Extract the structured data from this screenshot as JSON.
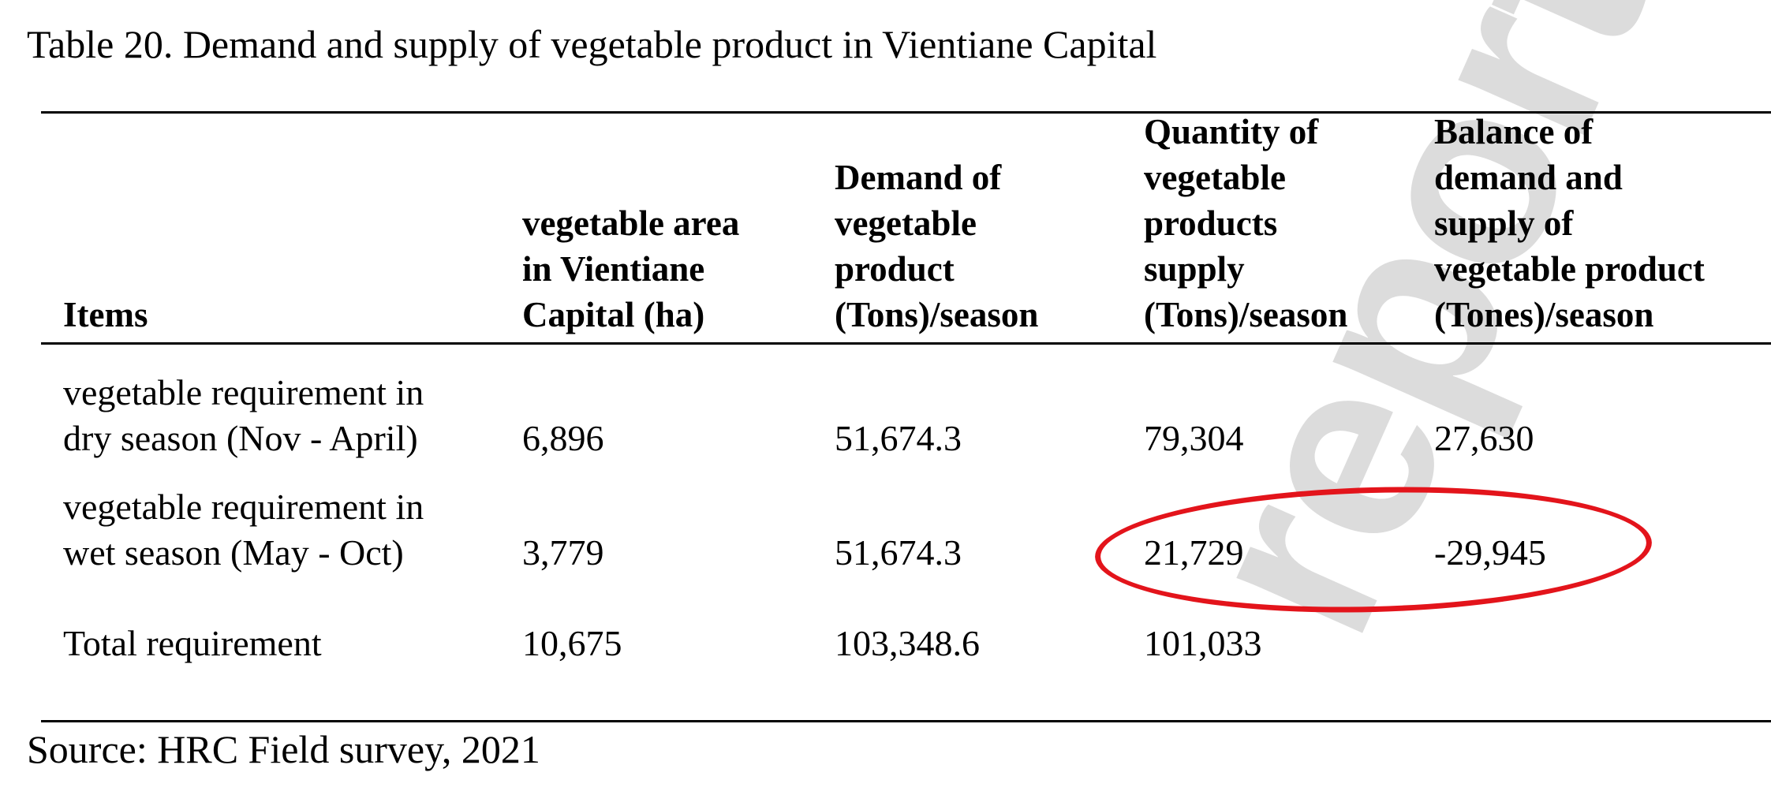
{
  "caption": "Table 20. Demand and supply of vegetable product in Vientiane Capital",
  "watermark": "report",
  "table": {
    "headers": {
      "items": [
        "Items"
      ],
      "area": [
        "vegetable area",
        "in Vientiane",
        "Capital (ha)"
      ],
      "demand": [
        "Demand of",
        "vegetable",
        "product",
        "(Tons)/season"
      ],
      "supply": [
        "Quantity of",
        "vegetable",
        "products",
        "supply",
        "(Tons)/season"
      ],
      "balance": [
        "Balance of",
        "demand and",
        "supply of",
        "vegetable product",
        "(Tones)/season"
      ]
    },
    "rows": [
      {
        "item": [
          "vegetable requirement in",
          "dry season (Nov - April)"
        ],
        "area": "6,896",
        "demand": "51,674.3",
        "supply": "79,304",
        "balance": "27,630"
      },
      {
        "item": [
          "vegetable requirement in",
          "wet season (May - Oct)"
        ],
        "area": "3,779",
        "demand": "51,674.3",
        "supply": "21,729",
        "balance": "-29,945"
      },
      {
        "item": [
          "Total requirement"
        ],
        "area": "10,675",
        "demand": "103,348.6",
        "supply": "101,033",
        "balance": ""
      }
    ]
  },
  "source": "Source: HRC Field survey, 2021",
  "colors": {
    "highlight": "#e3141b",
    "watermark": "#dcdcdc"
  }
}
